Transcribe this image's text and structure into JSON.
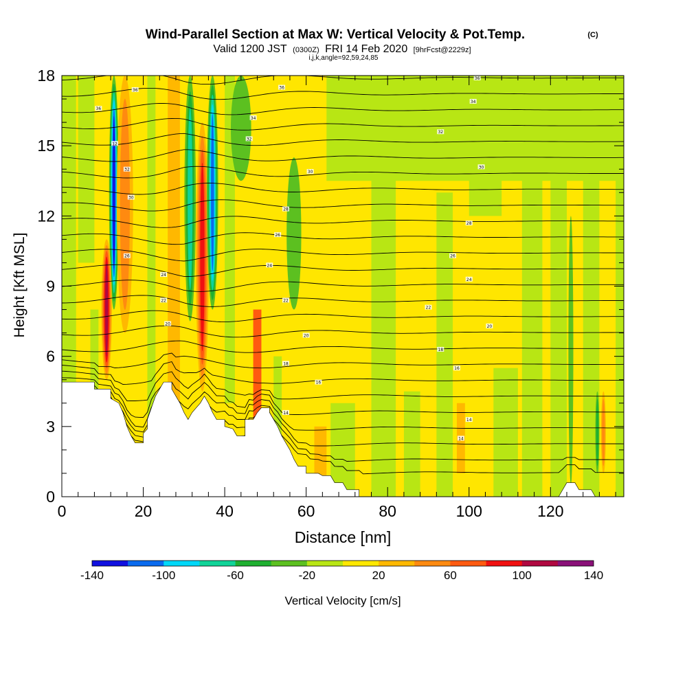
{
  "chart_data": {
    "type": "heatmap",
    "title": "Wind-Parallel Section at Max W: Vertical Velocity & Pot.Temp.",
    "title_mark": "(C)",
    "subtitle": {
      "valid": "Valid 1200 JST",
      "utc": "(0300Z)",
      "date": "FRI 14 Feb 2020",
      "fcst": "[9hrFcst@2229z]"
    },
    "subsubtitle": "i,j,k,angle=92,59,24,85",
    "xlabel": "Distance [nm]",
    "ylabel": "Height [Kft MSL]",
    "xlim": [
      0,
      138
    ],
    "ylim": [
      0,
      18
    ],
    "x_ticks": [
      "0",
      "20",
      "40",
      "60",
      "80",
      "100",
      "120"
    ],
    "x_tick_values": [
      0,
      20,
      40,
      60,
      80,
      100,
      120
    ],
    "y_ticks": [
      "0",
      "3",
      "6",
      "9",
      "12",
      "15",
      "18"
    ],
    "y_tick_values": [
      0,
      3,
      6,
      9,
      12,
      15,
      18
    ],
    "colorbar": {
      "label": "Vertical Velocity [cm/s]",
      "tick_labels": [
        "-140",
        "-100",
        "-60",
        "-20",
        "20",
        "60",
        "100",
        "140"
      ],
      "tick_values": [
        -140,
        -100,
        -60,
        -20,
        20,
        60,
        100,
        140
      ],
      "colors": [
        "#1010e0",
        "#0a6aee",
        "#00d8f8",
        "#10d498",
        "#1fb030",
        "#5cc020",
        "#b8e614",
        "#ffe800",
        "#ffb800",
        "#ff8a10",
        "#ff5a10",
        "#f01010",
        "#b00840",
        "#8a1078"
      ]
    },
    "terrain_kft": [
      [
        0,
        4.9
      ],
      [
        5,
        4.9
      ],
      [
        8,
        4.9
      ],
      [
        8,
        4.6
      ],
      [
        12,
        4.6
      ],
      [
        12,
        4.2
      ],
      [
        14,
        4.0
      ],
      [
        15,
        3.6
      ],
      [
        16,
        3.0
      ],
      [
        17,
        2.6
      ],
      [
        18,
        2.3
      ],
      [
        20,
        2.3
      ],
      [
        20,
        2.7
      ],
      [
        21,
        2.9
      ],
      [
        21,
        3.3
      ],
      [
        22,
        3.8
      ],
      [
        23,
        4.3
      ],
      [
        24,
        4.6
      ],
      [
        25,
        4.9
      ],
      [
        27,
        4.9
      ],
      [
        27,
        4.6
      ],
      [
        28,
        4.3
      ],
      [
        29,
        4.0
      ],
      [
        30,
        3.6
      ],
      [
        31,
        3.3
      ],
      [
        32,
        3.6
      ],
      [
        33,
        3.8
      ],
      [
        34,
        4.0
      ],
      [
        35,
        4.3
      ],
      [
        36,
        4.0
      ],
      [
        37,
        3.6
      ],
      [
        38,
        3.3
      ],
      [
        40,
        3.3
      ],
      [
        40,
        3.0
      ],
      [
        42,
        2.9
      ],
      [
        43,
        2.6
      ],
      [
        45,
        2.6
      ],
      [
        45,
        3.3
      ],
      [
        47,
        3.3
      ],
      [
        48,
        3.6
      ],
      [
        49,
        3.8
      ],
      [
        51,
        3.8
      ],
      [
        51,
        3.6
      ],
      [
        52,
        3.3
      ],
      [
        53,
        3.0
      ],
      [
        54,
        2.6
      ],
      [
        55,
        2.3
      ],
      [
        56,
        2.0
      ],
      [
        57,
        1.6
      ],
      [
        58,
        1.3
      ],
      [
        60,
        1.3
      ],
      [
        60,
        1.0
      ],
      [
        63,
        1.0
      ],
      [
        64,
        0.9
      ],
      [
        66,
        0.9
      ],
      [
        67,
        0.6
      ],
      [
        69,
        0.6
      ],
      [
        70,
        0.3
      ],
      [
        73,
        0.3
      ],
      [
        73,
        0.0
      ],
      [
        100,
        0.0
      ],
      [
        120,
        0.0
      ],
      [
        122,
        0.0
      ],
      [
        124,
        0.6
      ],
      [
        126,
        0.6
      ],
      [
        127,
        0.3
      ],
      [
        130,
        0.3
      ],
      [
        131,
        0.0
      ],
      [
        138,
        0.0
      ]
    ],
    "velocity_features": [
      {
        "kind": "down",
        "x": 12.8,
        "width": 1.2,
        "y_bottom": 8.0,
        "peak_cms": -140
      },
      {
        "kind": "up",
        "x": 11,
        "width": 1.3,
        "y_bottom": 5.0,
        "y_top": 11.0,
        "peak_cms": 110
      },
      {
        "kind": "up",
        "x": 15.5,
        "width": 2.0,
        "y_bottom": 7.0,
        "y_top": 18.0,
        "peak_cms": 60
      },
      {
        "kind": "down",
        "x": 31.5,
        "width": 1.4,
        "y_bottom": 7.5,
        "y_top": 18.0,
        "peak_cms": -80
      },
      {
        "kind": "up",
        "x": 34.5,
        "width": 1.6,
        "y_bottom": 4.5,
        "y_top": 16.0,
        "peak_cms": 90
      },
      {
        "kind": "down",
        "x": 37,
        "width": 1.4,
        "y_bottom": 8.0,
        "y_top": 18.0,
        "peak_cms": -110
      },
      {
        "kind": "down",
        "x": 44,
        "width": 2.5,
        "y_bottom": 13.5,
        "y_top": 18.0,
        "peak_cms": -40
      },
      {
        "kind": "down",
        "x": 57,
        "width": 1.8,
        "y_bottom": 8.0,
        "y_top": 14.5,
        "peak_cms": -30
      },
      {
        "kind": "down",
        "x": 125,
        "width": 0.6,
        "y_bottom": 0.5,
        "y_top": 12.0,
        "peak_cms": -40
      },
      {
        "kind": "down",
        "x": 131.5,
        "width": 0.5,
        "y_bottom": 1.0,
        "y_top": 4.5,
        "peak_cms": -50
      },
      {
        "kind": "up",
        "x": 133,
        "width": 0.6,
        "y_bottom": 1.0,
        "y_top": 4.5,
        "peak_cms": 50
      }
    ],
    "isentropes": {
      "lines": 26,
      "labels": [
        {
          "x": 18,
          "y": 17.4,
          "text": "36"
        },
        {
          "x": 9,
          "y": 16.6,
          "text": "36"
        },
        {
          "x": 13,
          "y": 15.1,
          "text": "12"
        },
        {
          "x": 16,
          "y": 14.0,
          "text": "32"
        },
        {
          "x": 17,
          "y": 12.8,
          "text": "30"
        },
        {
          "x": 16,
          "y": 10.3,
          "text": "26"
        },
        {
          "x": 25,
          "y": 9.5,
          "text": "24"
        },
        {
          "x": 25,
          "y": 8.4,
          "text": "22"
        },
        {
          "x": 26,
          "y": 7.4,
          "text": "20"
        },
        {
          "x": 47,
          "y": 16.2,
          "text": "34"
        },
        {
          "x": 46,
          "y": 15.3,
          "text": "32"
        },
        {
          "x": 54,
          "y": 17.5,
          "text": "36"
        },
        {
          "x": 61,
          "y": 13.9,
          "text": "30"
        },
        {
          "x": 55,
          "y": 12.3,
          "text": "28"
        },
        {
          "x": 53,
          "y": 11.2,
          "text": "26"
        },
        {
          "x": 51,
          "y": 9.9,
          "text": "24"
        },
        {
          "x": 55,
          "y": 8.4,
          "text": "22"
        },
        {
          "x": 60,
          "y": 6.9,
          "text": "20"
        },
        {
          "x": 55,
          "y": 5.7,
          "text": "18"
        },
        {
          "x": 63,
          "y": 4.9,
          "text": "16"
        },
        {
          "x": 55,
          "y": 3.6,
          "text": "14"
        },
        {
          "x": 102,
          "y": 17.9,
          "text": "36"
        },
        {
          "x": 101,
          "y": 16.9,
          "text": "34"
        },
        {
          "x": 93,
          "y": 15.6,
          "text": "32"
        },
        {
          "x": 103,
          "y": 14.1,
          "text": "30"
        },
        {
          "x": 100,
          "y": 11.7,
          "text": "28"
        },
        {
          "x": 96,
          "y": 10.3,
          "text": "26"
        },
        {
          "x": 100,
          "y": 9.3,
          "text": "24"
        },
        {
          "x": 90,
          "y": 8.1,
          "text": "22"
        },
        {
          "x": 105,
          "y": 7.3,
          "text": "20"
        },
        {
          "x": 93,
          "y": 6.3,
          "text": "18"
        },
        {
          "x": 97,
          "y": 5.5,
          "text": "16"
        },
        {
          "x": 100,
          "y": 3.3,
          "text": "14"
        },
        {
          "x": 98,
          "y": 2.5,
          "text": "14"
        }
      ]
    },
    "grid": false
  }
}
